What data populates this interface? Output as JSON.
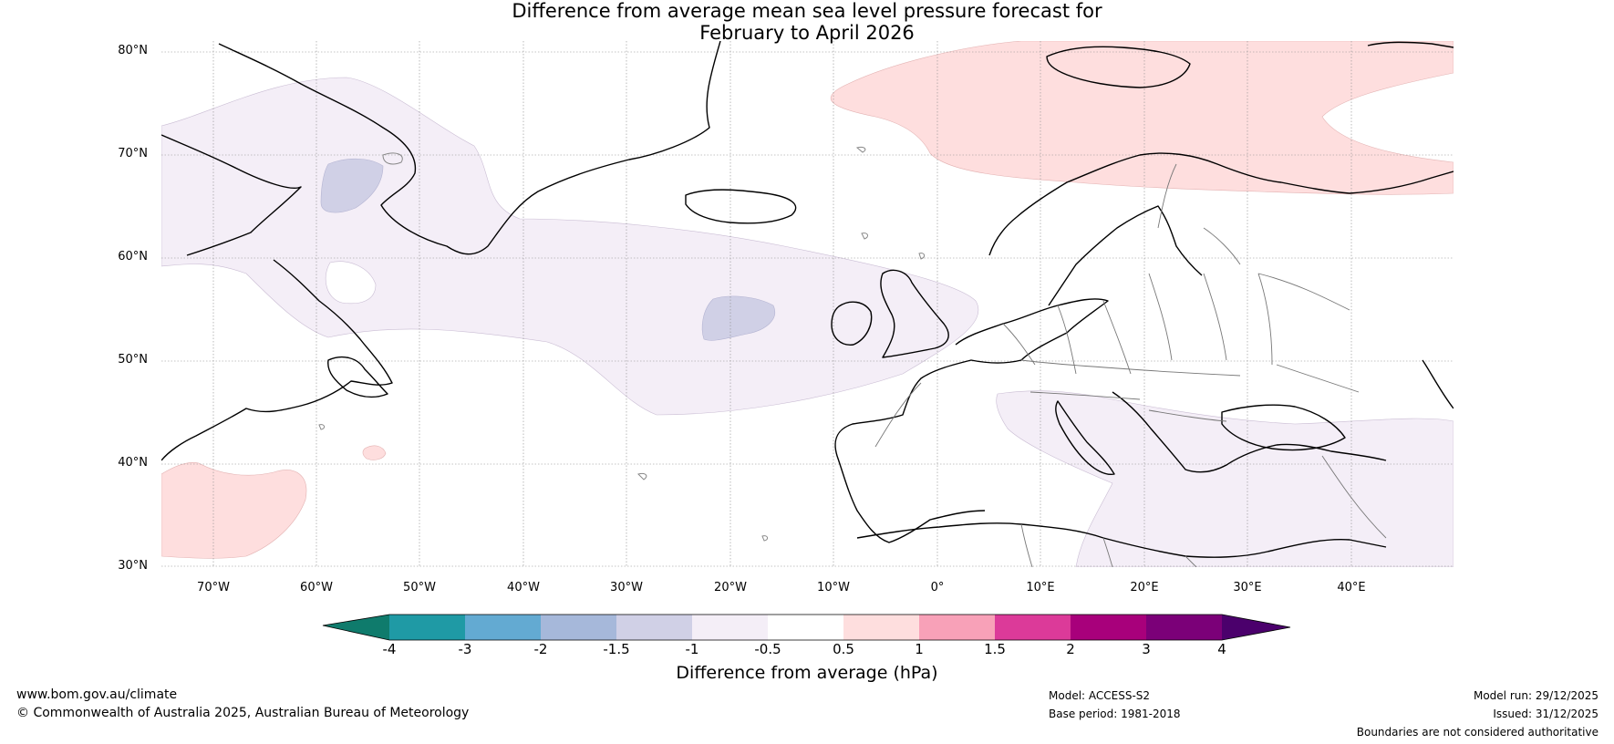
{
  "title": {
    "line1": "Difference from average mean sea level pressure forecast for",
    "line2": "February to April 2026"
  },
  "map": {
    "lat_labels": [
      "80°N",
      "70°N",
      "60°N",
      "50°N",
      "40°N",
      "30°N"
    ],
    "lon_labels": [
      "70°W",
      "60°W",
      "50°W",
      "40°W",
      "30°W",
      "20°W",
      "10°W",
      "0°",
      "10°E",
      "20°E",
      "30°E",
      "40°E"
    ]
  },
  "legend": {
    "title": "Difference from average (hPa)",
    "ticks": [
      "-4",
      "-3",
      "-2",
      "-1.5",
      "-1",
      "-0.5",
      "0.5",
      "1",
      "1.5",
      "2",
      "3",
      "4"
    ],
    "colors": [
      "#0f7b6c",
      "#1f9aa5",
      "#63aad2",
      "#a6b8da",
      "#d0d0e6",
      "#f4eef7",
      "#ffffff",
      "#fedede",
      "#f8a1b8",
      "#dc3a99",
      "#a8007b",
      "#7b0078",
      "#4b006c"
    ]
  },
  "footer": {
    "website": "www.bom.gov.au/climate",
    "copyright": "© Commonwealth of Australia 2025, Australian Bureau of Meteorology",
    "model": "Model: ACCESS-S2",
    "base_period": "Base period: 1981-2018",
    "model_run": "Model run: 29/12/2025",
    "issued": "Issued: 31/12/2025",
    "disclaimer": "Boundaries are not considered authoritative"
  }
}
